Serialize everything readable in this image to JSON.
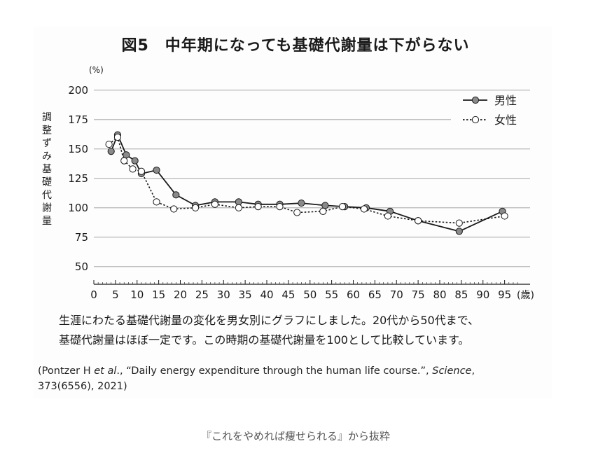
{
  "title": "図5　中年期になっても基礎代謝量は下がらない",
  "caption": {
    "line1": "生涯にわたる基礎代謝量の変化を男女別にグラフにしました。20代から50代まで、",
    "line2": "基礎代謝量はほぼ一定です。この時期の基礎代謝量を100として比較しています。"
  },
  "citation": {
    "line1_pre": "(Pontzer H ",
    "line1_etal": "et al",
    "line1_mid": "., “Daily energy expenditure through the human life course.”, ",
    "line1_journal": "Science",
    "line1_post": ",",
    "line2": "373(6556), 2021)"
  },
  "source_note": "『これをやめれば痩せられる』から抜粋",
  "chart_data": {
    "type": "line",
    "ylabel": "調整ずみ基礎代謝量",
    "yunit": "(%)",
    "xunit": "(歳)",
    "xlim": [
      0,
      100
    ],
    "ylim": [
      35,
      200
    ],
    "xticks": [
      0,
      5,
      10,
      15,
      20,
      25,
      30,
      35,
      40,
      45,
      50,
      55,
      60,
      65,
      70,
      75,
      80,
      85,
      90,
      95
    ],
    "yticks": [
      50,
      75,
      100,
      125,
      150,
      175,
      200
    ],
    "grid": "horizontal",
    "legend_position": "top-right",
    "series": [
      {
        "name": "男性",
        "marker": "filled",
        "line_style": "solid",
        "x": [
          4,
          5.5,
          7.5,
          9.5,
          11,
          14.5,
          19,
          23.5,
          28,
          33.5,
          38,
          43,
          48,
          53.5,
          58,
          63,
          68.5,
          75,
          84.5,
          94.5
        ],
        "y": [
          148,
          162,
          145,
          140,
          129,
          132,
          111,
          102,
          105,
          105,
          103,
          103,
          104,
          102,
          101,
          100,
          97,
          89,
          80,
          97
        ]
      },
      {
        "name": "女性",
        "marker": "open",
        "line_style": "dotted",
        "x": [
          3.5,
          5.5,
          7,
          9,
          11,
          14.5,
          18.5,
          23.5,
          28,
          33.5,
          38,
          43,
          47,
          53,
          57.5,
          62.5,
          68,
          75,
          84.5,
          95
        ],
        "y": [
          154,
          160,
          140,
          133,
          131,
          105,
          99,
          100,
          103,
          100,
          101,
          101,
          96,
          97,
          101,
          99,
          93,
          89,
          87,
          93
        ]
      }
    ]
  }
}
